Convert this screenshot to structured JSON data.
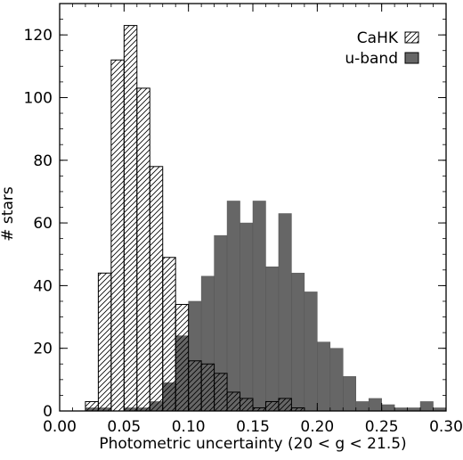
{
  "chart_data": {
    "type": "bar",
    "title": "",
    "xlabel": "Photometric uncertainty (20 < g < 21.5)",
    "ylabel": "# stars",
    "xlim": [
      0.0,
      0.3
    ],
    "ylim": [
      0,
      130
    ],
    "bin_width": 0.01,
    "x_ticks": [
      "0.00",
      "0.05",
      "0.10",
      "0.15",
      "0.20",
      "0.25",
      "0.30"
    ],
    "y_ticks": [
      "0",
      "20",
      "40",
      "60",
      "80",
      "100",
      "120"
    ],
    "legend_position": "top-right",
    "grid": false,
    "series": [
      {
        "name": "CaHK",
        "style": "hatched",
        "bins": [
          {
            "x0": 0.02,
            "x1": 0.03,
            "count": 3
          },
          {
            "x0": 0.03,
            "x1": 0.04,
            "count": 44
          },
          {
            "x0": 0.04,
            "x1": 0.05,
            "count": 112
          },
          {
            "x0": 0.05,
            "x1": 0.06,
            "count": 123
          },
          {
            "x0": 0.06,
            "x1": 0.07,
            "count": 103
          },
          {
            "x0": 0.07,
            "x1": 0.08,
            "count": 78
          },
          {
            "x0": 0.08,
            "x1": 0.09,
            "count": 49
          },
          {
            "x0": 0.09,
            "x1": 0.1,
            "count": 34
          },
          {
            "x0": 0.1,
            "x1": 0.11,
            "count": 16
          },
          {
            "x0": 0.11,
            "x1": 0.12,
            "count": 15
          },
          {
            "x0": 0.12,
            "x1": 0.13,
            "count": 12
          },
          {
            "x0": 0.13,
            "x1": 0.14,
            "count": 6
          },
          {
            "x0": 0.14,
            "x1": 0.15,
            "count": 4
          },
          {
            "x0": 0.15,
            "x1": 0.16,
            "count": 1
          },
          {
            "x0": 0.16,
            "x1": 0.17,
            "count": 3
          },
          {
            "x0": 0.17,
            "x1": 0.18,
            "count": 4
          },
          {
            "x0": 0.18,
            "x1": 0.19,
            "count": 1
          }
        ]
      },
      {
        "name": "u-band",
        "style": "filled",
        "color": "#666666",
        "bins": [
          {
            "x0": 0.02,
            "x1": 0.03,
            "count": 1
          },
          {
            "x0": 0.03,
            "x1": 0.04,
            "count": 1
          },
          {
            "x0": 0.04,
            "x1": 0.05,
            "count": 0
          },
          {
            "x0": 0.05,
            "x1": 0.06,
            "count": 1
          },
          {
            "x0": 0.06,
            "x1": 0.07,
            "count": 1
          },
          {
            "x0": 0.07,
            "x1": 0.08,
            "count": 3
          },
          {
            "x0": 0.08,
            "x1": 0.09,
            "count": 9
          },
          {
            "x0": 0.09,
            "x1": 0.1,
            "count": 24
          },
          {
            "x0": 0.1,
            "x1": 0.11,
            "count": 35
          },
          {
            "x0": 0.11,
            "x1": 0.12,
            "count": 43
          },
          {
            "x0": 0.12,
            "x1": 0.13,
            "count": 56
          },
          {
            "x0": 0.13,
            "x1": 0.14,
            "count": 67
          },
          {
            "x0": 0.14,
            "x1": 0.15,
            "count": 60
          },
          {
            "x0": 0.15,
            "x1": 0.16,
            "count": 67
          },
          {
            "x0": 0.16,
            "x1": 0.17,
            "count": 46
          },
          {
            "x0": 0.17,
            "x1": 0.18,
            "count": 63
          },
          {
            "x0": 0.18,
            "x1": 0.19,
            "count": 44
          },
          {
            "x0": 0.19,
            "x1": 0.2,
            "count": 38
          },
          {
            "x0": 0.2,
            "x1": 0.21,
            "count": 22
          },
          {
            "x0": 0.21,
            "x1": 0.22,
            "count": 20
          },
          {
            "x0": 0.22,
            "x1": 0.23,
            "count": 11
          },
          {
            "x0": 0.23,
            "x1": 0.24,
            "count": 3
          },
          {
            "x0": 0.24,
            "x1": 0.25,
            "count": 4
          },
          {
            "x0": 0.25,
            "x1": 0.26,
            "count": 2
          },
          {
            "x0": 0.26,
            "x1": 0.27,
            "count": 1
          },
          {
            "x0": 0.27,
            "x1": 0.28,
            "count": 1
          },
          {
            "x0": 0.28,
            "x1": 0.29,
            "count": 3
          },
          {
            "x0": 0.29,
            "x1": 0.3,
            "count": 1
          }
        ]
      }
    ]
  }
}
